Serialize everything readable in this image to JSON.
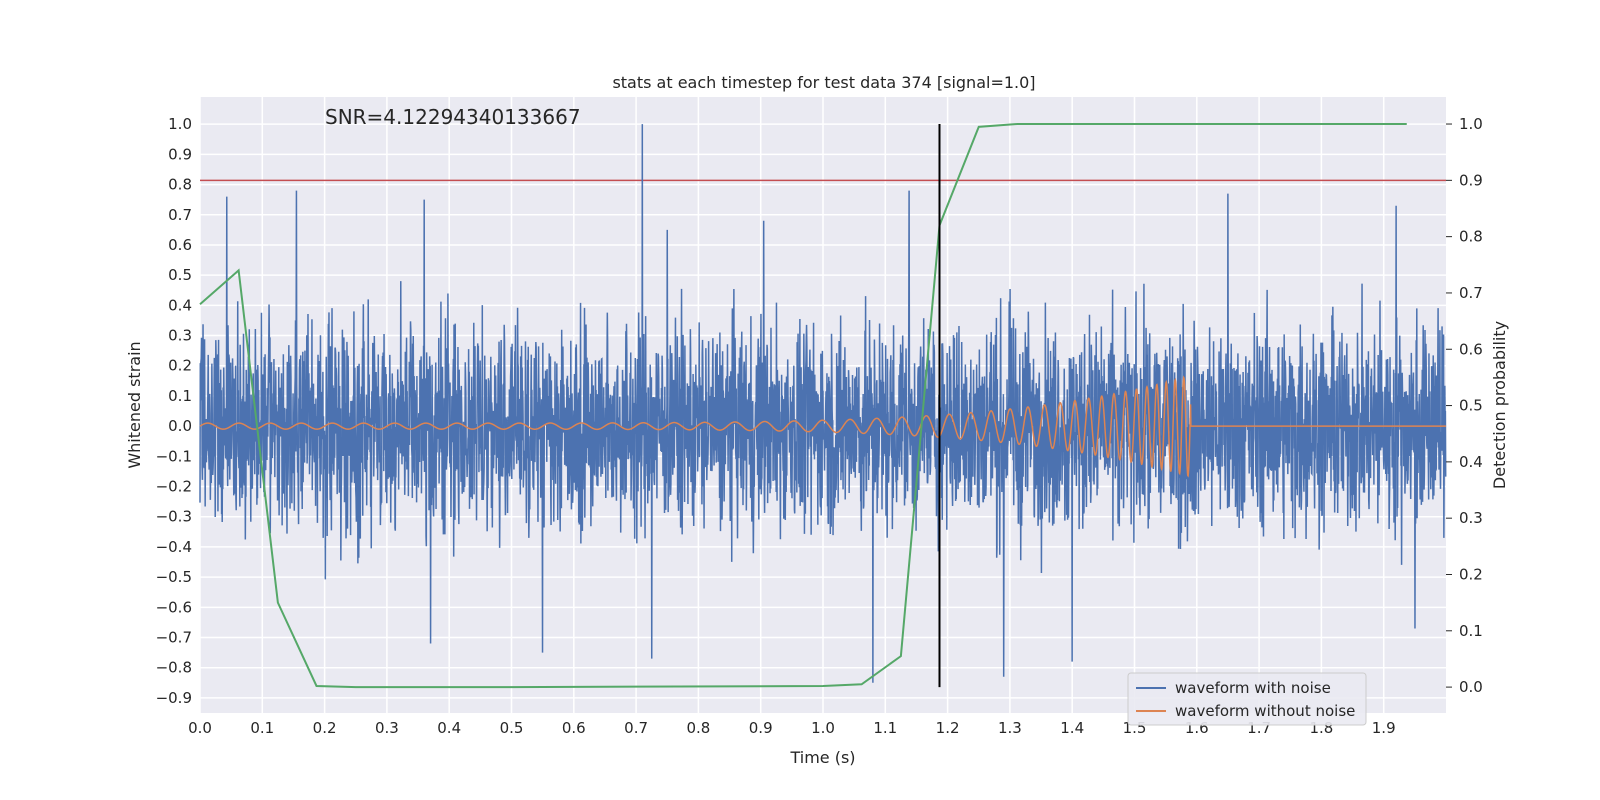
{
  "chart_data": {
    "type": "line",
    "title": "stats at each timestep for test data 374 [signal=1.0]",
    "annotation": "SNR=4.12294340133667",
    "xlabel": "Time (s)",
    "ylabel": "Whitened strain",
    "y2label": "Detection probability",
    "xlim": [
      0.0,
      2.0
    ],
    "ylim": [
      -0.95,
      1.09
    ],
    "y2lim": [
      -0.046,
      1.048
    ],
    "x_ticks": [
      "0.0",
      "0.1",
      "0.2",
      "0.3",
      "0.4",
      "0.5",
      "0.6",
      "0.7",
      "0.8",
      "0.9",
      "1.0",
      "1.1",
      "1.2",
      "1.3",
      "1.4",
      "1.5",
      "1.6",
      "1.7",
      "1.8",
      "1.9"
    ],
    "y_ticks": [
      "1.0",
      "0.9",
      "0.8",
      "0.7",
      "0.6",
      "0.5",
      "0.4",
      "0.3",
      "0.2",
      "0.1",
      "0.0",
      "−0.1",
      "−0.2",
      "−0.3",
      "−0.4",
      "−0.5",
      "−0.6",
      "−0.7",
      "−0.8",
      "−0.9"
    ],
    "y2_ticks": [
      "1.0",
      "0.9",
      "0.8",
      "0.7",
      "0.6",
      "0.5",
      "0.4",
      "0.3",
      "0.2",
      "0.1",
      "0.0"
    ],
    "threshold_line": {
      "y2": 0.9,
      "color": "#c44e52"
    },
    "event_marker": {
      "x": 1.187,
      "y2_range": [
        0.0,
        1.0
      ],
      "color": "#000000"
    },
    "series": [
      {
        "name": "waveform with noise",
        "axis": "left",
        "color": "#4c72b0",
        "kind": "noise",
        "sample_rate": 2048,
        "duration": 2.0,
        "envelope": 0.27,
        "spikes": [
          {
            "x": 0.043,
            "y": 0.76
          },
          {
            "x": 0.155,
            "y": 0.78
          },
          {
            "x": 0.36,
            "y": 0.75
          },
          {
            "x": 0.71,
            "y": 1.0
          },
          {
            "x": 0.75,
            "y": 0.65
          },
          {
            "x": 0.905,
            "y": 0.68
          },
          {
            "x": 1.138,
            "y": 0.78
          },
          {
            "x": 1.65,
            "y": 0.77
          },
          {
            "x": 1.92,
            "y": 0.73
          },
          {
            "x": 0.37,
            "y": -0.72
          },
          {
            "x": 0.55,
            "y": -0.75
          },
          {
            "x": 0.725,
            "y": -0.77
          },
          {
            "x": 1.08,
            "y": -0.85
          },
          {
            "x": 1.29,
            "y": -0.83
          },
          {
            "x": 1.4,
            "y": -0.78
          },
          {
            "x": 1.95,
            "y": -0.67
          }
        ]
      },
      {
        "name": "waveform without noise",
        "axis": "left",
        "color": "#dd8452",
        "kind": "chirp",
        "t_merge": 1.59,
        "start_amp": 0.01,
        "peak_amp": 0.17,
        "start_freq": 20,
        "end_freq": 250
      },
      {
        "name": "detection probability",
        "axis": "right",
        "color": "#55a868",
        "kind": "line",
        "x": [
          0.0,
          0.062,
          0.125,
          0.187,
          0.25,
          0.5,
          1.0,
          1.062,
          1.125,
          1.187,
          1.25,
          1.312,
          1.5,
          1.75,
          1.937
        ],
        "y": [
          0.68,
          0.74,
          0.15,
          0.002,
          0.0,
          0.0,
          0.002,
          0.005,
          0.055,
          0.82,
          0.995,
          1.0,
          1.0,
          1.0,
          1.0
        ]
      }
    ],
    "legend": {
      "placement": "lower-right",
      "entries": [
        {
          "label": "waveform with noise",
          "color": "#4c72b0"
        },
        {
          "label": "waveform without noise",
          "color": "#dd8452"
        }
      ]
    }
  }
}
